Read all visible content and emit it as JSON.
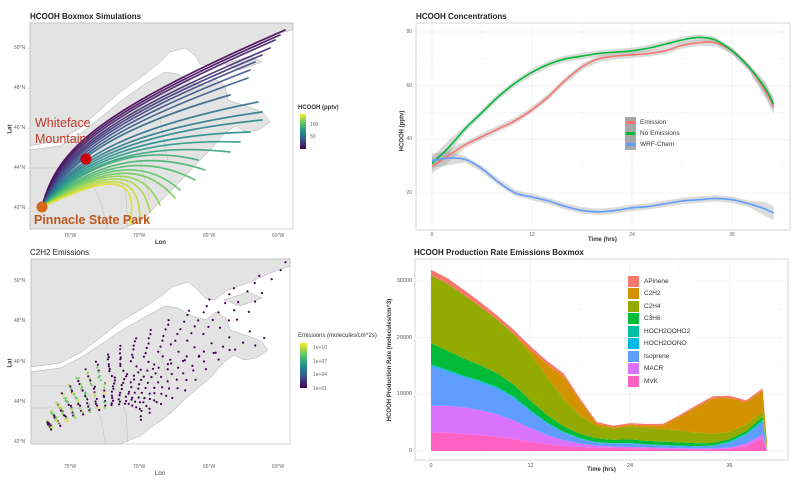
{
  "panels": {
    "boxmox_map": {
      "title": "HCOOH Boxmox Simulations",
      "xlabel": "Lon",
      "ylabel": "Lat",
      "xticks": [
        "75°W",
        "70°W",
        "65°W",
        "60°W"
      ],
      "yticks": [
        "50°N",
        "48°N",
        "46°N",
        "44°N",
        "42°N"
      ],
      "legend": {
        "title": "HCOOH (pptv)",
        "ticks": [
          "100",
          "50"
        ]
      },
      "annotations": {
        "whiteface": {
          "line1": "Whiteface",
          "line2": "Mountain",
          "color": "#c0392b"
        },
        "pinnacle": {
          "text": "Pinnacle State Park",
          "color": "#c0561b"
        }
      }
    },
    "emissions_map": {
      "title": "C2H2 Emissions",
      "xlabel": "Lon",
      "ylabel": "Lat",
      "xticks": [
        "75°W",
        "70°W",
        "65°W",
        "60°W"
      ],
      "yticks": [
        "50°N",
        "48°N",
        "46°N",
        "44°N",
        "42°N"
      ],
      "legend": {
        "title": "Emissions (molecules/cm^2s)",
        "ticks": [
          "1e+10",
          "1e+07",
          "1e+04",
          "1e+01"
        ]
      }
    }
  },
  "chart_data": [
    {
      "type": "line",
      "title": "HCOOH Concentrations",
      "xlabel": "Time (hrs)",
      "ylabel": "HCOOH (pptv)",
      "xticks": [
        "0",
        "12",
        "24",
        "36"
      ],
      "yticks": [
        "80",
        "60",
        "40",
        "20"
      ],
      "xlim": [
        -2,
        42
      ],
      "ylim": [
        10,
        82
      ],
      "legend_position": "center-right",
      "x": [
        0,
        2,
        4,
        6,
        8,
        10,
        12,
        14,
        16,
        18,
        20,
        22,
        24,
        26,
        28,
        30,
        32,
        34,
        36,
        38,
        40,
        41
      ],
      "series": [
        {
          "name": "Emission",
          "color": "#f8766d",
          "values": [
            30,
            34,
            38,
            41,
            44,
            47,
            51,
            56,
            62,
            67,
            70,
            71,
            71.5,
            72,
            73,
            75,
            76,
            76,
            73,
            67,
            58,
            52
          ]
        },
        {
          "name": "No Emissions",
          "color": "#00ba38",
          "values": [
            31,
            37,
            44,
            50,
            56,
            61,
            65,
            68,
            70,
            71,
            72,
            72.5,
            73,
            74,
            75.5,
            77,
            78,
            77,
            73,
            67,
            59,
            53
          ]
        },
        {
          "name": "WRF-Chem",
          "color": "#619cff",
          "values": [
            32,
            33,
            32.5,
            29,
            24,
            20,
            18.5,
            17,
            15,
            13.5,
            13,
            13.5,
            14.5,
            15,
            16,
            17,
            17.5,
            18,
            17.5,
            16,
            14,
            12.5
          ]
        }
      ]
    },
    {
      "type": "area",
      "stacked": true,
      "title": "HCOOH Production Rate Emissions Boxmox",
      "xlabel": "Time (hrs)",
      "ylabel": "HCOOH Production Rate (molecules/cm^3)",
      "xticks": [
        "0",
        "12",
        "24",
        "36"
      ],
      "yticks": [
        "30000",
        "20000",
        "10000",
        "0"
      ],
      "xlim": [
        -2,
        43
      ],
      "ylim": [
        -1000,
        33000
      ],
      "legend_position": "top-center",
      "x": [
        0,
        2,
        4,
        6,
        8,
        10,
        12,
        14,
        16,
        18,
        20,
        22,
        24,
        26,
        28,
        30,
        32,
        34,
        36,
        38,
        40,
        40.5
      ],
      "series": [
        {
          "name": "MVK",
          "color": "#ff61c3",
          "values": [
            3300,
            3200,
            3000,
            2800,
            2500,
            2100,
            1600,
            1200,
            900,
            700,
            600,
            550,
            500,
            450,
            400,
            350,
            300,
            300,
            400,
            900,
            2200,
            100
          ]
        },
        {
          "name": "MACR",
          "color": "#db72fb",
          "values": [
            4700,
            4800,
            4700,
            4400,
            4000,
            3300,
            2400,
            1600,
            1000,
            600,
            350,
            250,
            200,
            180,
            160,
            150,
            150,
            150,
            200,
            400,
            700,
            50
          ]
        },
        {
          "name": "Isoprene",
          "color": "#619cff",
          "values": [
            7000,
            6000,
            5300,
            4900,
            4500,
            3900,
            2900,
            2000,
            1300,
            800,
            500,
            450,
            600,
            450,
            380,
            330,
            300,
            400,
            900,
            1500,
            2200,
            100
          ]
        },
        {
          "name": "HOCH2OONO",
          "color": "#00b9e3",
          "values": [
            200,
            200,
            200,
            200,
            200,
            200,
            200,
            150,
            120,
            100,
            80,
            80,
            80,
            80,
            80,
            80,
            80,
            80,
            100,
            150,
            250,
            20
          ]
        },
        {
          "name": "HOCH2OOHO2",
          "color": "#00bfa0",
          "values": [
            100,
            100,
            100,
            100,
            100,
            100,
            100,
            80,
            60,
            50,
            40,
            40,
            40,
            40,
            40,
            40,
            40,
            40,
            60,
            80,
            150,
            10
          ]
        },
        {
          "name": "C3H6",
          "color": "#00ba38",
          "values": [
            3700,
            3400,
            3000,
            2700,
            2400,
            2100,
            1700,
            1300,
            1000,
            750,
            650,
            620,
            650,
            620,
            600,
            560,
            500,
            450,
            450,
            500,
            550,
            30
          ]
        },
        {
          "name": "C2H4",
          "color": "#93aa00",
          "values": [
            12000,
            11800,
            11200,
            10300,
            9500,
            8900,
            8200,
            6700,
            4800,
            3200,
            2100,
            2000,
            2300,
            2300,
            2200,
            2100,
            1900,
            1600,
            1300,
            1100,
            900,
            50
          ]
        },
        {
          "name": "C2H2",
          "color": "#d39200",
          "values": [
            0,
            0,
            0,
            0,
            0,
            100,
            800,
            2300,
            4000,
            2600,
            500,
            200,
            300,
            400,
            700,
            2500,
            4500,
            6300,
            6000,
            4000,
            3800,
            1500
          ]
        },
        {
          "name": "APinene",
          "color": "#f8766d",
          "values": [
            1000,
            1000,
            900,
            800,
            700,
            650,
            600,
            550,
            500,
            400,
            300,
            250,
            250,
            250,
            250,
            250,
            300,
            350,
            350,
            300,
            300,
            50
          ]
        }
      ]
    }
  ]
}
